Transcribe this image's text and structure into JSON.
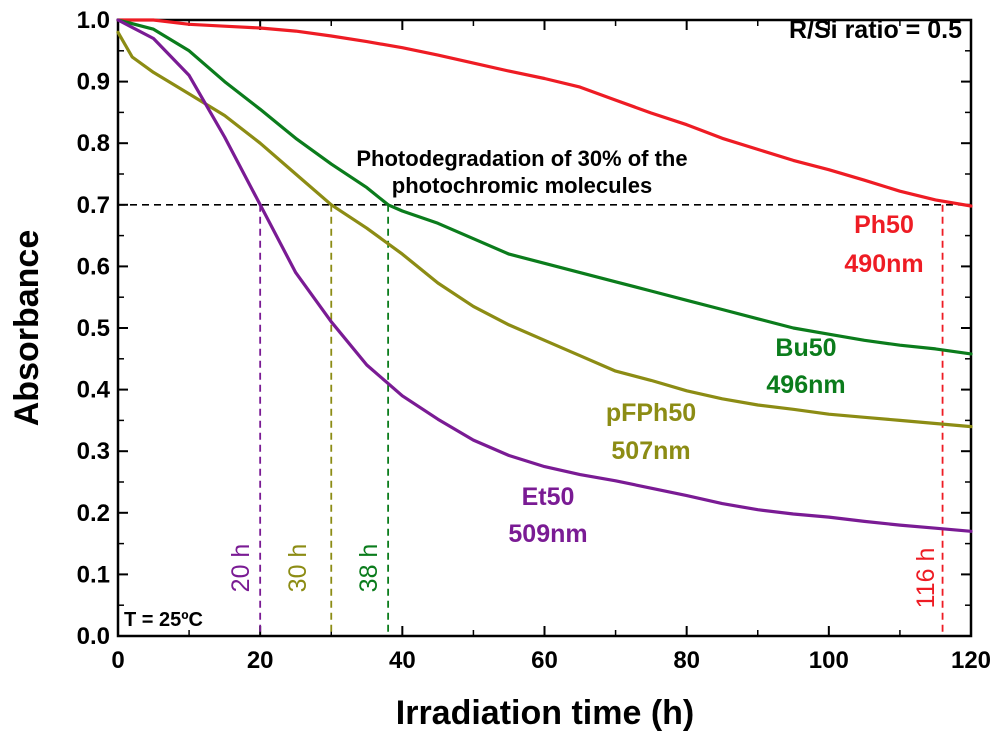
{
  "chart_data": {
    "type": "line",
    "xlabel": "Irradiation time (h)",
    "ylabel": "Absorbance",
    "xlim": [
      0,
      120
    ],
    "ylim": [
      0.0,
      1.0
    ],
    "xticks": [
      0,
      20,
      40,
      60,
      80,
      100,
      120
    ],
    "yticks": [
      "0.0",
      "0.1",
      "0.2",
      "0.3",
      "0.4",
      "0.5",
      "0.6",
      "0.7",
      "0.8",
      "0.9",
      "1.0"
    ],
    "grid": false,
    "legend": "none",
    "series": [
      {
        "name": "Ph50",
        "wavelength": "490nm",
        "color": "#ee1c24",
        "x": [
          0,
          5,
          10,
          15,
          20,
          25,
          30,
          35,
          40,
          45,
          50,
          55,
          60,
          65,
          70,
          75,
          80,
          85,
          90,
          95,
          100,
          105,
          110,
          115,
          120
        ],
        "y": [
          1.0,
          1.0,
          0.993,
          0.99,
          0.987,
          0.982,
          0.974,
          0.965,
          0.955,
          0.943,
          0.93,
          0.917,
          0.905,
          0.891,
          0.87,
          0.849,
          0.83,
          0.808,
          0.79,
          0.772,
          0.757,
          0.74,
          0.722,
          0.708,
          0.698
        ]
      },
      {
        "name": "Bu50",
        "wavelength": "496nm",
        "color": "#0b7c1c",
        "x": [
          0,
          5,
          10,
          15,
          20,
          25,
          30,
          35,
          38,
          40,
          45,
          50,
          55,
          60,
          65,
          70,
          75,
          80,
          85,
          90,
          95,
          100,
          105,
          110,
          115,
          120
        ],
        "y": [
          1.0,
          0.985,
          0.95,
          0.9,
          0.855,
          0.808,
          0.766,
          0.728,
          0.7,
          0.69,
          0.67,
          0.645,
          0.62,
          0.605,
          0.59,
          0.575,
          0.56,
          0.545,
          0.53,
          0.515,
          0.5,
          0.49,
          0.48,
          0.472,
          0.466,
          0.458
        ]
      },
      {
        "name": "pFPh50",
        "wavelength": "507nm",
        "color": "#8c8c14",
        "x": [
          0,
          2,
          5,
          10,
          15,
          20,
          25,
          30,
          35,
          40,
          45,
          50,
          55,
          60,
          65,
          70,
          75,
          80,
          85,
          90,
          95,
          100,
          105,
          110,
          115,
          120
        ],
        "y": [
          0.98,
          0.94,
          0.915,
          0.88,
          0.845,
          0.8,
          0.75,
          0.7,
          0.662,
          0.62,
          0.573,
          0.535,
          0.505,
          0.48,
          0.455,
          0.43,
          0.415,
          0.398,
          0.385,
          0.375,
          0.368,
          0.36,
          0.355,
          0.35,
          0.345,
          0.34
        ]
      },
      {
        "name": "Et50",
        "wavelength": "509nm",
        "color": "#7a1b94",
        "x": [
          0,
          5,
          10,
          15,
          20,
          25,
          30,
          35,
          40,
          45,
          50,
          55,
          60,
          65,
          70,
          75,
          80,
          85,
          90,
          95,
          100,
          105,
          110,
          115,
          120
        ],
        "y": [
          1.0,
          0.97,
          0.91,
          0.81,
          0.7,
          0.59,
          0.51,
          0.44,
          0.39,
          0.352,
          0.318,
          0.293,
          0.275,
          0.262,
          0.252,
          0.24,
          0.228,
          0.215,
          0.205,
          0.198,
          0.193,
          0.186,
          0.18,
          0.175,
          0.17
        ]
      }
    ],
    "reference_line": {
      "y": 0.7,
      "style": "dashed",
      "color": "#000000"
    },
    "time_markers": [
      {
        "x": 20,
        "label": "20 h",
        "color": "#7a1b94"
      },
      {
        "x": 30,
        "label": "30 h",
        "color": "#8c8c14"
      },
      {
        "x": 38,
        "label": "38 h",
        "color": "#0b7c1c"
      },
      {
        "x": 116,
        "label": "116 h",
        "color": "#ee1c24"
      }
    ],
    "annotations": {
      "ratio": "R/Si ratio = 0.5",
      "photodegradation_line1": "Photodegradation of 30% of the",
      "photodegradation_line2": "photochromic molecules",
      "temperature": "T = 25ºC"
    }
  }
}
